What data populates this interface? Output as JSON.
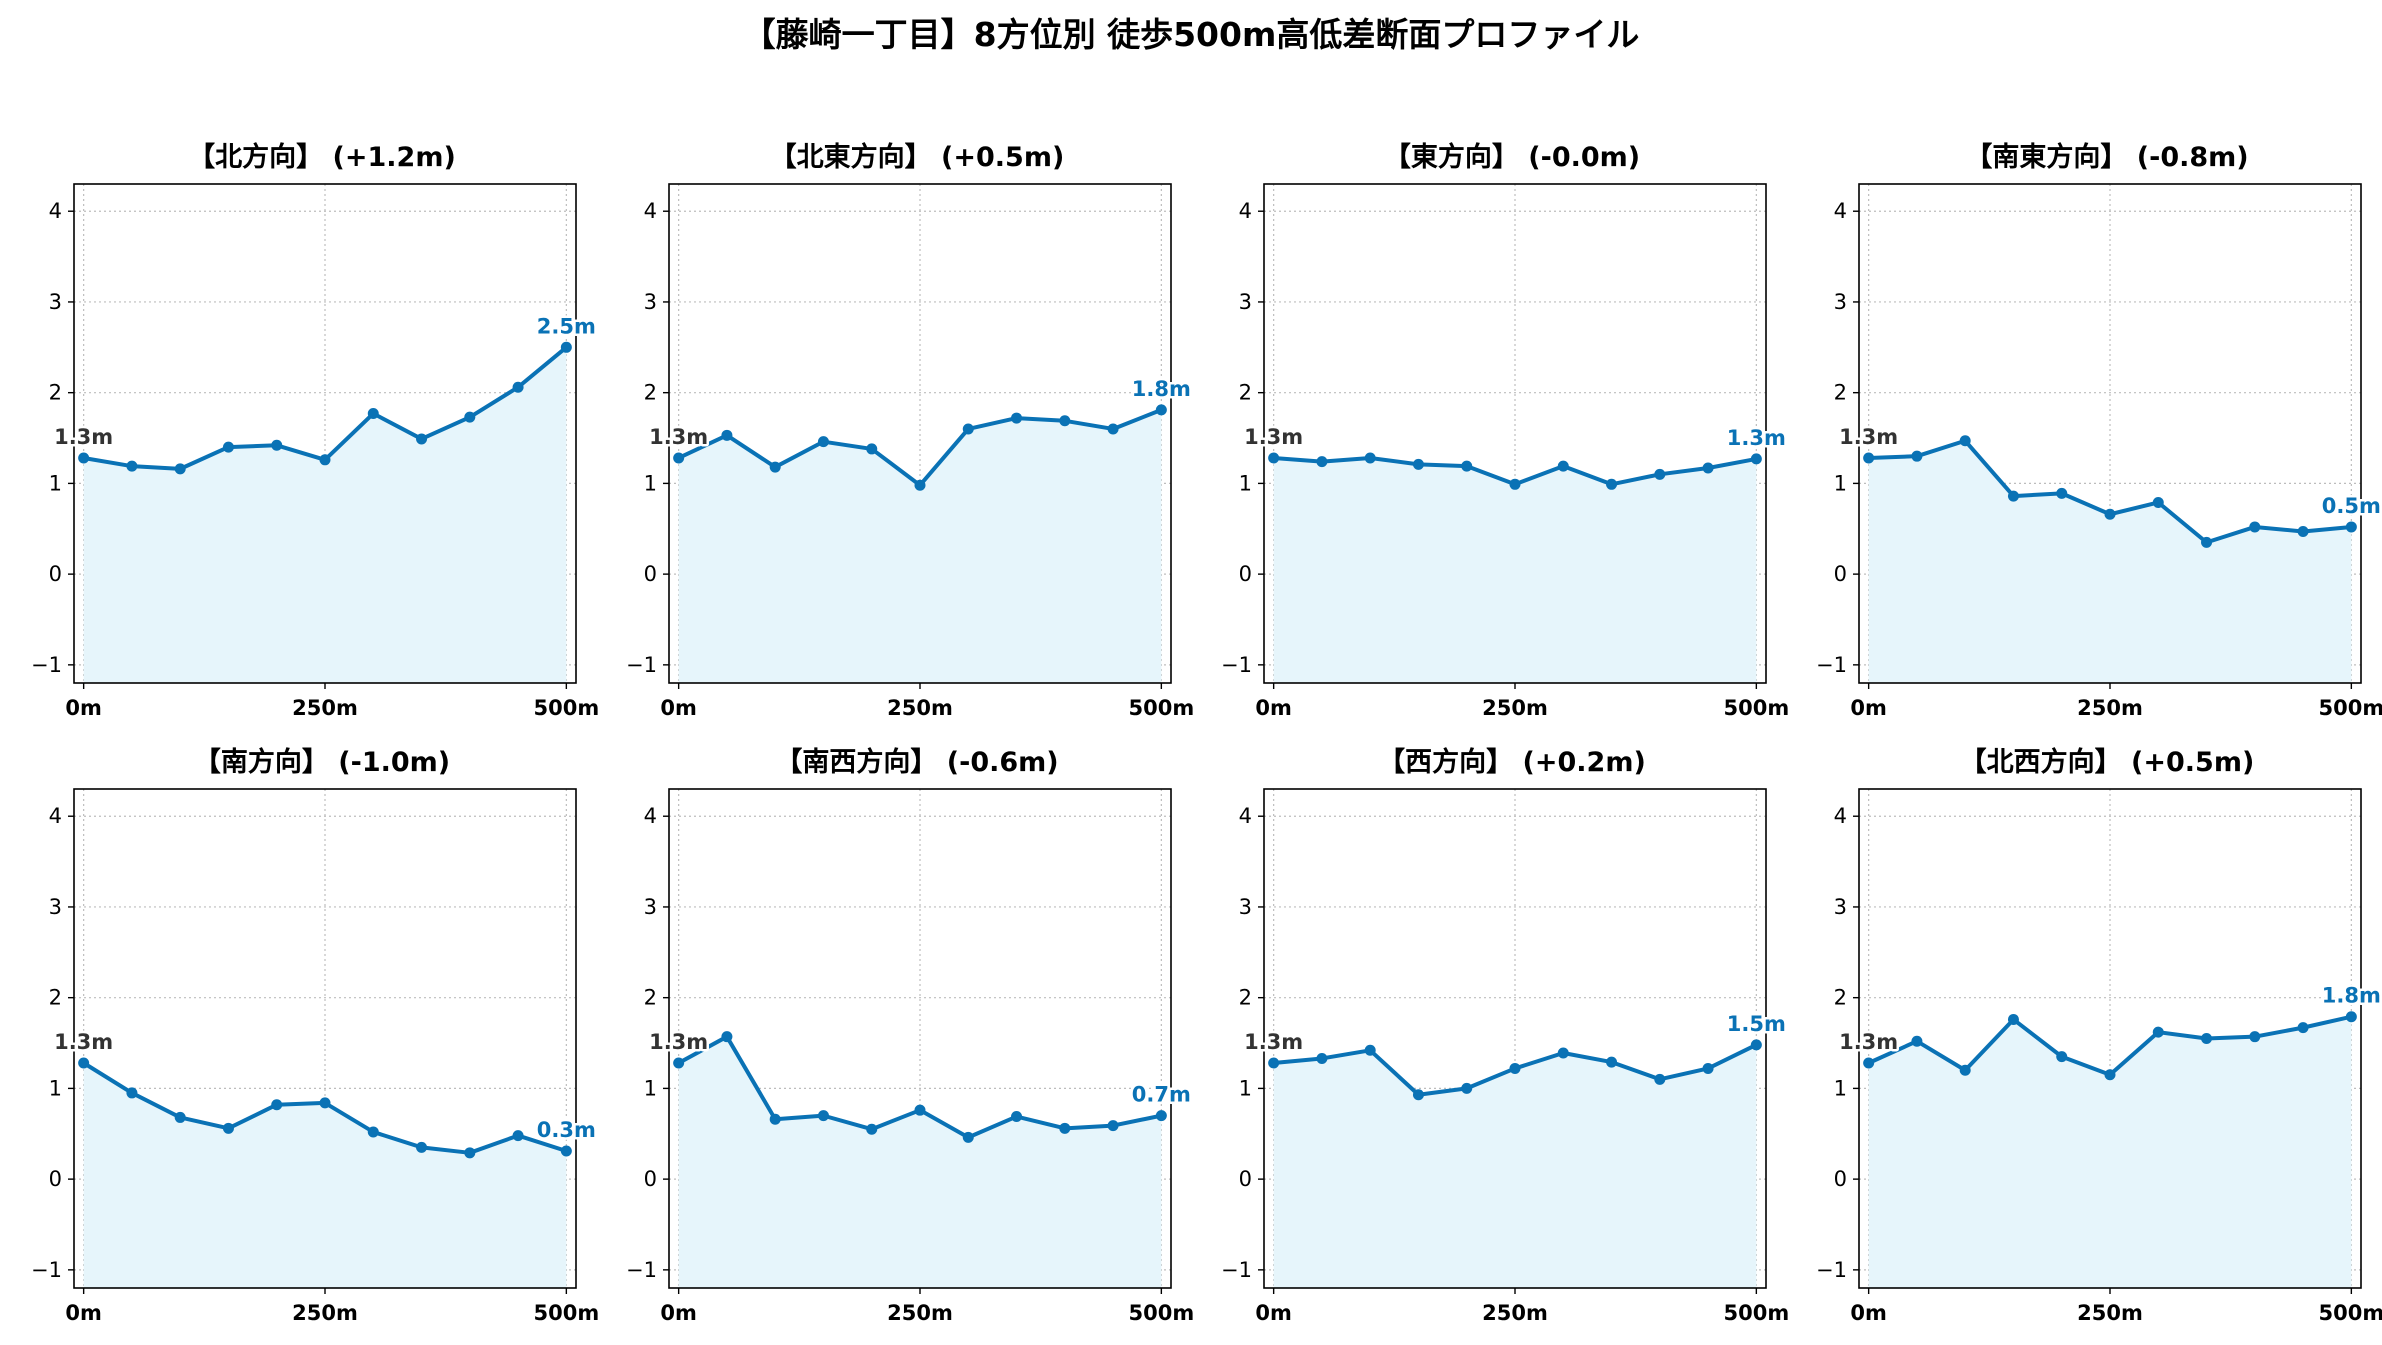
{
  "figure_title": "【藤崎一丁目】8方位別 徒歩500m高低差断面プロファイル",
  "colors": {
    "line": "#0a72b5",
    "fill": "#e6f5fb",
    "grid": "#bdbdbd",
    "start_label": "#333333",
    "end_label": "#0a72b5"
  },
  "chart_data": [
    {
      "type": "area",
      "title": "【北方向】 (+1.2m)",
      "xlabel": "",
      "ylabel": "",
      "xlim": [
        -10,
        510
      ],
      "ylim": [
        -1.2,
        4.3
      ],
      "x_ticks": [
        0,
        250,
        500
      ],
      "x_tick_labels": [
        "0m",
        "250m",
        "500m"
      ],
      "y_ticks": [
        -1,
        0,
        1,
        2,
        3,
        4
      ],
      "y_tick_labels": [
        "−1",
        "0",
        "1",
        "2",
        "3",
        "4"
      ],
      "grid": true,
      "x": [
        0,
        50,
        100,
        150,
        200,
        250,
        300,
        350,
        400,
        450,
        500
      ],
      "values": [
        1.28,
        1.19,
        1.16,
        1.4,
        1.42,
        1.26,
        1.77,
        1.49,
        1.73,
        2.06,
        2.5
      ],
      "start_label": "1.3m",
      "end_label": "2.5m"
    },
    {
      "type": "area",
      "title": "【北東方向】 (+0.5m)",
      "xlabel": "",
      "ylabel": "",
      "xlim": [
        -10,
        510
      ],
      "ylim": [
        -1.2,
        4.3
      ],
      "x_ticks": [
        0,
        250,
        500
      ],
      "x_tick_labels": [
        "0m",
        "250m",
        "500m"
      ],
      "y_ticks": [
        -1,
        0,
        1,
        2,
        3,
        4
      ],
      "y_tick_labels": [
        "−1",
        "0",
        "1",
        "2",
        "3",
        "4"
      ],
      "grid": true,
      "x": [
        0,
        50,
        100,
        150,
        200,
        250,
        300,
        350,
        400,
        450,
        500
      ],
      "values": [
        1.28,
        1.53,
        1.18,
        1.46,
        1.38,
        0.98,
        1.6,
        1.72,
        1.69,
        1.6,
        1.81
      ],
      "start_label": "1.3m",
      "end_label": "1.8m"
    },
    {
      "type": "area",
      "title": "【東方向】 (-0.0m)",
      "xlabel": "",
      "ylabel": "",
      "xlim": [
        -10,
        510
      ],
      "ylim": [
        -1.2,
        4.3
      ],
      "x_ticks": [
        0,
        250,
        500
      ],
      "x_tick_labels": [
        "0m",
        "250m",
        "500m"
      ],
      "y_ticks": [
        -1,
        0,
        1,
        2,
        3,
        4
      ],
      "y_tick_labels": [
        "−1",
        "0",
        "1",
        "2",
        "3",
        "4"
      ],
      "grid": true,
      "x": [
        0,
        50,
        100,
        150,
        200,
        250,
        300,
        350,
        400,
        450,
        500
      ],
      "values": [
        1.28,
        1.24,
        1.28,
        1.21,
        1.19,
        0.99,
        1.19,
        0.99,
        1.1,
        1.17,
        1.27
      ],
      "start_label": "1.3m",
      "end_label": "1.3m"
    },
    {
      "type": "area",
      "title": "【南東方向】 (-0.8m)",
      "xlabel": "",
      "ylabel": "",
      "xlim": [
        -10,
        510
      ],
      "ylim": [
        -1.2,
        4.3
      ],
      "x_ticks": [
        0,
        250,
        500
      ],
      "x_tick_labels": [
        "0m",
        "250m",
        "500m"
      ],
      "y_ticks": [
        -1,
        0,
        1,
        2,
        3,
        4
      ],
      "y_tick_labels": [
        "−1",
        "0",
        "1",
        "2",
        "3",
        "4"
      ],
      "grid": true,
      "x": [
        0,
        50,
        100,
        150,
        200,
        250,
        300,
        350,
        400,
        450,
        500
      ],
      "values": [
        1.28,
        1.3,
        1.47,
        0.86,
        0.89,
        0.66,
        0.79,
        0.35,
        0.52,
        0.47,
        0.52
      ],
      "start_label": "1.3m",
      "end_label": "0.5m"
    },
    {
      "type": "area",
      "title": "【南方向】 (-1.0m)",
      "xlabel": "",
      "ylabel": "",
      "xlim": [
        -10,
        510
      ],
      "ylim": [
        -1.2,
        4.3
      ],
      "x_ticks": [
        0,
        250,
        500
      ],
      "x_tick_labels": [
        "0m",
        "250m",
        "500m"
      ],
      "y_ticks": [
        -1,
        0,
        1,
        2,
        3,
        4
      ],
      "y_tick_labels": [
        "−1",
        "0",
        "1",
        "2",
        "3",
        "4"
      ],
      "grid": true,
      "x": [
        0,
        50,
        100,
        150,
        200,
        250,
        300,
        350,
        400,
        450,
        500
      ],
      "values": [
        1.28,
        0.95,
        0.68,
        0.56,
        0.82,
        0.84,
        0.52,
        0.35,
        0.29,
        0.48,
        0.31
      ],
      "start_label": "1.3m",
      "end_label": "0.3m"
    },
    {
      "type": "area",
      "title": "【南西方向】 (-0.6m)",
      "xlabel": "",
      "ylabel": "",
      "xlim": [
        -10,
        510
      ],
      "ylim": [
        -1.2,
        4.3
      ],
      "x_ticks": [
        0,
        250,
        500
      ],
      "x_tick_labels": [
        "0m",
        "250m",
        "500m"
      ],
      "y_ticks": [
        -1,
        0,
        1,
        2,
        3,
        4
      ],
      "y_tick_labels": [
        "−1",
        "0",
        "1",
        "2",
        "3",
        "4"
      ],
      "grid": true,
      "x": [
        0,
        50,
        100,
        150,
        200,
        250,
        300,
        350,
        400,
        450,
        500
      ],
      "values": [
        1.28,
        1.57,
        0.66,
        0.7,
        0.55,
        0.76,
        0.46,
        0.69,
        0.56,
        0.59,
        0.7
      ],
      "start_label": "1.3m",
      "end_label": "0.7m"
    },
    {
      "type": "area",
      "title": "【西方向】 (+0.2m)",
      "xlabel": "",
      "ylabel": "",
      "xlim": [
        -10,
        510
      ],
      "ylim": [
        -1.2,
        4.3
      ],
      "x_ticks": [
        0,
        250,
        500
      ],
      "x_tick_labels": [
        "0m",
        "250m",
        "500m"
      ],
      "y_ticks": [
        -1,
        0,
        1,
        2,
        3,
        4
      ],
      "y_tick_labels": [
        "−1",
        "0",
        "1",
        "2",
        "3",
        "4"
      ],
      "grid": true,
      "x": [
        0,
        50,
        100,
        150,
        200,
        250,
        300,
        350,
        400,
        450,
        500
      ],
      "values": [
        1.28,
        1.33,
        1.42,
        0.93,
        1.0,
        1.22,
        1.39,
        1.29,
        1.1,
        1.22,
        1.48
      ],
      "start_label": "1.3m",
      "end_label": "1.5m"
    },
    {
      "type": "area",
      "title": "【北西方向】 (+0.5m)",
      "xlabel": "",
      "ylabel": "",
      "xlim": [
        -10,
        510
      ],
      "ylim": [
        -1.2,
        4.3
      ],
      "x_ticks": [
        0,
        250,
        500
      ],
      "x_tick_labels": [
        "0m",
        "250m",
        "500m"
      ],
      "y_ticks": [
        -1,
        0,
        1,
        2,
        3,
        4
      ],
      "y_tick_labels": [
        "−1",
        "0",
        "1",
        "2",
        "3",
        "4"
      ],
      "grid": true,
      "x": [
        0,
        50,
        100,
        150,
        200,
        250,
        300,
        350,
        400,
        450,
        500
      ],
      "values": [
        1.28,
        1.52,
        1.2,
        1.76,
        1.35,
        1.15,
        1.62,
        1.55,
        1.57,
        1.67,
        1.79
      ],
      "start_label": "1.3m",
      "end_label": "1.8m"
    }
  ]
}
